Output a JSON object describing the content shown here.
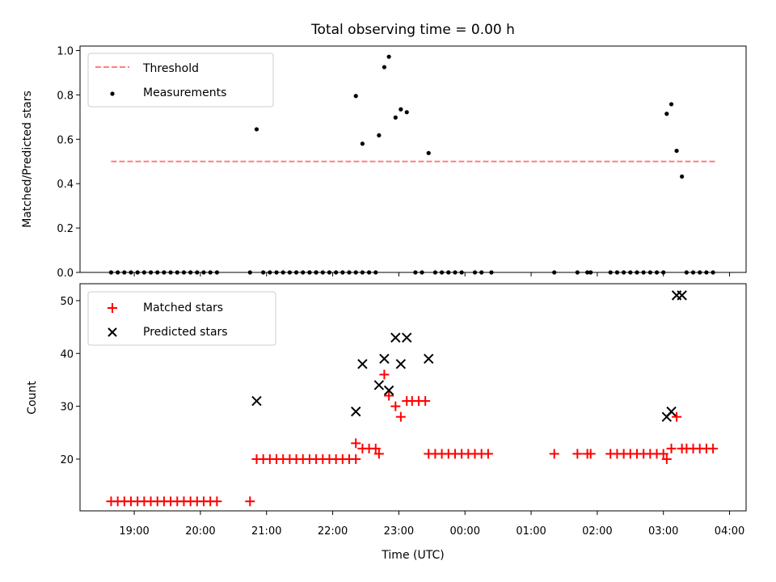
{
  "chart_data": [
    {
      "type": "scatter",
      "title": "Total observing time = 0.00 h",
      "xlabel": "",
      "ylabel": "Matched/Predicted stars",
      "ylim": [
        0,
        1.02
      ],
      "yticks": [
        "0.0",
        "0.2",
        "0.4",
        "0.6",
        "0.8",
        "1.0"
      ],
      "x_unit": "hours after 19:00 UTC (axis shared with lower panel)",
      "legend": {
        "position": "upper-left",
        "entries": [
          "Threshold",
          "Measurements"
        ]
      },
      "threshold": {
        "name": "Threshold",
        "y": 0.5,
        "x_range": [
          -0.35,
          8.8
        ],
        "color": "#ff7f7f",
        "style": "dashed"
      },
      "series": [
        {
          "name": "Measurements",
          "color": "#000000",
          "marker": "dot",
          "points": [
            [
              -0.35,
              0
            ],
            [
              -0.25,
              0
            ],
            [
              -0.15,
              0
            ],
            [
              -0.05,
              0
            ],
            [
              0.05,
              0
            ],
            [
              0.15,
              0
            ],
            [
              0.25,
              0
            ],
            [
              0.35,
              0
            ],
            [
              0.45,
              0
            ],
            [
              0.55,
              0
            ],
            [
              0.65,
              0
            ],
            [
              0.75,
              0
            ],
            [
              0.85,
              0
            ],
            [
              0.95,
              0
            ],
            [
              1.05,
              0
            ],
            [
              1.15,
              0
            ],
            [
              1.25,
              0
            ],
            [
              1.75,
              0
            ],
            [
              1.85,
              0.645
            ],
            [
              1.95,
              0
            ],
            [
              2.05,
              0
            ],
            [
              2.15,
              0
            ],
            [
              2.25,
              0
            ],
            [
              2.35,
              0
            ],
            [
              2.45,
              0
            ],
            [
              2.55,
              0
            ],
            [
              2.65,
              0
            ],
            [
              2.75,
              0
            ],
            [
              2.65,
              0
            ],
            [
              2.75,
              0
            ],
            [
              2.85,
              0
            ],
            [
              2.95,
              0
            ],
            [
              3.05,
              0
            ],
            [
              3.15,
              0
            ],
            [
              3.25,
              0
            ],
            [
              3.35,
              0
            ],
            [
              3.45,
              0
            ],
            [
              3.35,
              0.795
            ],
            [
              3.45,
              0.58
            ],
            [
              3.55,
              0
            ],
            [
              3.65,
              0
            ],
            [
              3.7,
              0.618
            ],
            [
              3.78,
              0.925
            ],
            [
              3.85,
              0.972
            ],
            [
              3.95,
              0.698
            ],
            [
              4.03,
              0.735
            ],
            [
              4.12,
              0.722
            ],
            [
              4.25,
              0
            ],
            [
              4.35,
              0
            ],
            [
              4.45,
              0.538
            ],
            [
              4.55,
              0
            ],
            [
              4.65,
              0
            ],
            [
              4.75,
              0
            ],
            [
              4.85,
              0
            ],
            [
              4.95,
              0
            ],
            [
              5.15,
              0
            ],
            [
              5.25,
              0
            ],
            [
              5.4,
              0
            ],
            [
              6.35,
              0
            ],
            [
              6.7,
              0
            ],
            [
              6.85,
              0
            ],
            [
              6.9,
              0
            ],
            [
              7.2,
              0
            ],
            [
              7.3,
              0
            ],
            [
              7.4,
              0
            ],
            [
              7.5,
              0
            ],
            [
              7.6,
              0
            ],
            [
              7.7,
              0
            ],
            [
              7.8,
              0
            ],
            [
              7.9,
              0
            ],
            [
              8.0,
              0
            ],
            [
              8.05,
              0.715
            ],
            [
              8.12,
              0.758
            ],
            [
              8.2,
              0.548
            ],
            [
              8.28,
              0.432
            ],
            [
              8.35,
              0
            ],
            [
              8.45,
              0
            ],
            [
              8.55,
              0
            ],
            [
              8.65,
              0
            ],
            [
              8.75,
              0
            ]
          ]
        }
      ]
    },
    {
      "type": "scatter",
      "title": "",
      "xlabel": "Time (UTC)",
      "ylabel": "Count",
      "ylim": [
        10.2,
        53.2
      ],
      "yticks": [
        "20",
        "30",
        "40",
        "50"
      ],
      "xlim": [
        -0.82,
        9.25
      ],
      "xticks": [
        "19:00",
        "20:00",
        "21:00",
        "22:00",
        "23:00",
        "00:00",
        "01:00",
        "02:00",
        "03:00",
        "04:00"
      ],
      "x_unit": "hours after 19:00 UTC",
      "legend": {
        "position": "upper-left",
        "entries": [
          "Matched stars",
          "Predicted stars"
        ]
      },
      "series": [
        {
          "name": "Matched stars",
          "color": "#ff0000",
          "marker": "plus",
          "points": [
            [
              -0.35,
              12
            ],
            [
              -0.25,
              12
            ],
            [
              -0.15,
              12
            ],
            [
              -0.05,
              12
            ],
            [
              0.05,
              12
            ],
            [
              0.15,
              12
            ],
            [
              0.25,
              12
            ],
            [
              0.35,
              12
            ],
            [
              0.45,
              12
            ],
            [
              0.55,
              12
            ],
            [
              0.65,
              12
            ],
            [
              0.75,
              12
            ],
            [
              0.85,
              12
            ],
            [
              0.95,
              12
            ],
            [
              1.05,
              12
            ],
            [
              1.15,
              12
            ],
            [
              1.25,
              12
            ],
            [
              1.75,
              12
            ],
            [
              1.85,
              20
            ],
            [
              1.95,
              20
            ],
            [
              2.05,
              20
            ],
            [
              2.15,
              20
            ],
            [
              2.25,
              20
            ],
            [
              2.35,
              20
            ],
            [
              2.45,
              20
            ],
            [
              2.55,
              20
            ],
            [
              2.65,
              20
            ],
            [
              2.75,
              20
            ],
            [
              2.85,
              20
            ],
            [
              2.95,
              20
            ],
            [
              3.05,
              20
            ],
            [
              3.15,
              20
            ],
            [
              3.25,
              20
            ],
            [
              3.35,
              20
            ],
            [
              3.35,
              23
            ],
            [
              3.45,
              22
            ],
            [
              3.55,
              22
            ],
            [
              3.65,
              22
            ],
            [
              3.7,
              21
            ],
            [
              3.78,
              36
            ],
            [
              3.85,
              32
            ],
            [
              3.95,
              30
            ],
            [
              4.03,
              28
            ],
            [
              4.12,
              31
            ],
            [
              4.2,
              31
            ],
            [
              4.3,
              31
            ],
            [
              4.4,
              31
            ],
            [
              4.45,
              21
            ],
            [
              4.55,
              21
            ],
            [
              4.65,
              21
            ],
            [
              4.75,
              21
            ],
            [
              4.85,
              21
            ],
            [
              4.95,
              21
            ],
            [
              5.05,
              21
            ],
            [
              5.15,
              21
            ],
            [
              5.25,
              21
            ],
            [
              5.35,
              21
            ],
            [
              6.35,
              21
            ],
            [
              6.7,
              21
            ],
            [
              6.85,
              21
            ],
            [
              6.9,
              21
            ],
            [
              7.2,
              21
            ],
            [
              7.3,
              21
            ],
            [
              7.4,
              21
            ],
            [
              7.5,
              21
            ],
            [
              7.6,
              21
            ],
            [
              7.7,
              21
            ],
            [
              7.8,
              21
            ],
            [
              7.9,
              21
            ],
            [
              8.0,
              21
            ],
            [
              8.05,
              20
            ],
            [
              8.12,
              22
            ],
            [
              8.2,
              28
            ],
            [
              8.28,
              22
            ],
            [
              8.35,
              22
            ],
            [
              8.45,
              22
            ],
            [
              8.55,
              22
            ],
            [
              8.65,
              22
            ],
            [
              8.75,
              22
            ]
          ]
        },
        {
          "name": "Predicted stars",
          "color": "#000000",
          "marker": "cross",
          "points": [
            [
              1.85,
              31
            ],
            [
              3.35,
              29
            ],
            [
              3.45,
              38
            ],
            [
              3.7,
              34
            ],
            [
              3.78,
              39
            ],
            [
              3.85,
              33
            ],
            [
              3.95,
              43
            ],
            [
              4.03,
              38
            ],
            [
              4.12,
              43
            ],
            [
              4.45,
              39
            ],
            [
              8.05,
              28
            ],
            [
              8.12,
              29
            ],
            [
              8.2,
              51
            ],
            [
              8.28,
              51
            ]
          ]
        }
      ]
    }
  ]
}
